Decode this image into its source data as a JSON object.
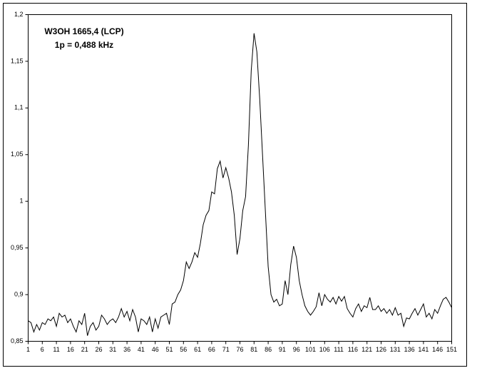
{
  "chart_data": {
    "type": "line",
    "annotations": [
      "W3OH 1665,4 (LCP)",
      "1p = 0,488 kHz"
    ],
    "x": [
      1,
      2,
      3,
      4,
      5,
      6,
      7,
      8,
      9,
      10,
      11,
      12,
      13,
      14,
      15,
      16,
      17,
      18,
      19,
      20,
      21,
      22,
      23,
      24,
      25,
      26,
      27,
      28,
      29,
      30,
      31,
      32,
      33,
      34,
      35,
      36,
      37,
      38,
      39,
      40,
      41,
      42,
      43,
      44,
      45,
      46,
      47,
      48,
      49,
      50,
      51,
      52,
      53,
      54,
      55,
      56,
      57,
      58,
      59,
      60,
      61,
      62,
      63,
      64,
      65,
      66,
      67,
      68,
      69,
      70,
      71,
      72,
      73,
      74,
      75,
      76,
      77,
      78,
      79,
      80,
      81,
      82,
      83,
      84,
      85,
      86,
      87,
      88,
      89,
      90,
      91,
      92,
      93,
      94,
      95,
      96,
      97,
      98,
      99,
      100,
      101,
      102,
      103,
      104,
      105,
      106,
      107,
      108,
      109,
      110,
      111,
      112,
      113,
      114,
      115,
      116,
      117,
      118,
      119,
      120,
      121,
      122,
      123,
      124,
      125,
      126,
      127,
      128,
      129,
      130,
      131,
      132,
      133,
      134,
      135,
      136,
      137,
      138,
      139,
      140,
      141,
      142,
      143,
      144,
      145,
      146,
      147,
      148,
      149,
      150,
      151
    ],
    "values": [
      0.872,
      0.87,
      0.86,
      0.868,
      0.862,
      0.87,
      0.868,
      0.874,
      0.872,
      0.876,
      0.866,
      0.88,
      0.876,
      0.878,
      0.87,
      0.874,
      0.866,
      0.86,
      0.872,
      0.868,
      0.88,
      0.856,
      0.866,
      0.87,
      0.862,
      0.866,
      0.878,
      0.874,
      0.868,
      0.872,
      0.874,
      0.87,
      0.876,
      0.885,
      0.876,
      0.882,
      0.872,
      0.884,
      0.876,
      0.86,
      0.874,
      0.872,
      0.868,
      0.876,
      0.86,
      0.874,
      0.864,
      0.876,
      0.878,
      0.88,
      0.868,
      0.89,
      0.892,
      0.9,
      0.905,
      0.915,
      0.935,
      0.928,
      0.935,
      0.945,
      0.94,
      0.955,
      0.975,
      0.985,
      0.99,
      1.01,
      1.008,
      1.035,
      1.043,
      1.025,
      1.036,
      1.025,
      1.01,
      0.985,
      0.943,
      0.96,
      0.99,
      1.005,
      1.06,
      1.14,
      1.18,
      1.16,
      1.11,
      1.05,
      0.99,
      0.93,
      0.9,
      0.892,
      0.895,
      0.888,
      0.89,
      0.915,
      0.9,
      0.932,
      0.952,
      0.94,
      0.915,
      0.9,
      0.888,
      0.882,
      0.878,
      0.882,
      0.887,
      0.902,
      0.888,
      0.9,
      0.895,
      0.892,
      0.897,
      0.89,
      0.898,
      0.893,
      0.898,
      0.885,
      0.88,
      0.876,
      0.885,
      0.89,
      0.882,
      0.888,
      0.886,
      0.897,
      0.884,
      0.884,
      0.888,
      0.882,
      0.885,
      0.88,
      0.884,
      0.878,
      0.886,
      0.878,
      0.88,
      0.866,
      0.875,
      0.874,
      0.88,
      0.885,
      0.878,
      0.884,
      0.89,
      0.876,
      0.88,
      0.874,
      0.884,
      0.88,
      0.888,
      0.895,
      0.897,
      0.892,
      0.886
    ],
    "color": "#000000",
    "xlim": [
      1,
      151
    ],
    "xticks": [
      1,
      6,
      11,
      16,
      21,
      26,
      31,
      36,
      41,
      46,
      51,
      56,
      61,
      66,
      71,
      76,
      81,
      86,
      91,
      96,
      101,
      106,
      111,
      116,
      121,
      126,
      131,
      136,
      141,
      146,
      151
    ],
    "ylim": [
      0.85,
      1.2
    ],
    "yticks": [
      {
        "value": 0.85,
        "label": "0,85"
      },
      {
        "value": 0.9,
        "label": "0,9"
      },
      {
        "value": 0.95,
        "label": "0,95"
      },
      1,
      {
        "value": 1.05,
        "label": "1,05"
      },
      {
        "value": 1.1,
        "label": "1,1"
      },
      {
        "value": 1.15,
        "label": "1,15"
      },
      {
        "value": 1.2,
        "label": "1,2"
      }
    ]
  }
}
